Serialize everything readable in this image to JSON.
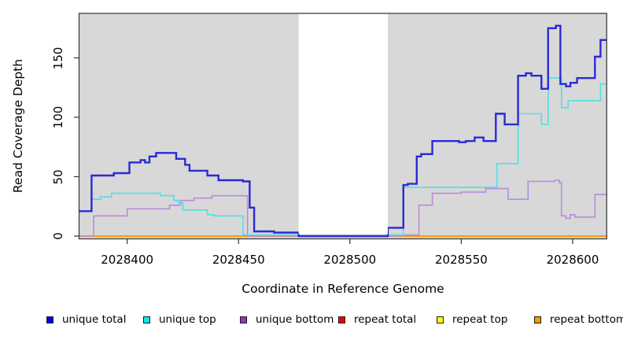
{
  "figure": {
    "y_axis_title": "Read Coverage Depth",
    "x_axis_title": "Coordinate in Reference Genome",
    "x_tick_labels": [
      "2028400",
      "2028450",
      "2028500",
      "2028550",
      "2028600"
    ],
    "y_tick_labels": [
      "0",
      "50",
      "100",
      "150"
    ]
  },
  "legend": {
    "items": [
      {
        "label": "unique total",
        "color": "#0000ee"
      },
      {
        "label": "unique top",
        "color": "#00eeee"
      },
      {
        "label": "unique bottom",
        "color": "#9933cc"
      },
      {
        "label": "repeat total",
        "color": "#ee0000"
      },
      {
        "label": "repeat top",
        "color": "#ffff00"
      },
      {
        "label": "repeat bottom",
        "color": "#ff9900"
      }
    ]
  },
  "chart_data": {
    "type": "line",
    "subtype": "step",
    "title": "",
    "xlabel": "Coordinate in Reference Genome",
    "ylabel": "Read Coverage Depth",
    "xlim": [
      2028378.4,
      2028615.3
    ],
    "ylim": [
      0,
      187
    ],
    "x_ticks": [
      2028400,
      2028450,
      2028500,
      2028550,
      2028600
    ],
    "y_ticks": [
      0,
      50,
      100,
      150
    ],
    "grid": false,
    "legend_position": "bottom",
    "panel_background": "#d8d8d8",
    "masked_region": {
      "x_start": 2028477,
      "x_end": 2028517,
      "color": "#ffffff"
    },
    "series": [
      {
        "name": "repeat total",
        "color": "#e8102c",
        "width": 1.6,
        "points": [
          [
            2028378.4,
            0
          ],
          [
            2028615.3,
            0
          ]
        ]
      },
      {
        "name": "repeat top",
        "color": "#ffff00",
        "width": 1.6,
        "points": [
          [
            2028378.4,
            0
          ],
          [
            2028615.3,
            0
          ]
        ]
      },
      {
        "name": "repeat bottom",
        "color": "#ff9900",
        "width": 2,
        "points": [
          [
            2028378.4,
            0
          ],
          [
            2028615.3,
            0
          ]
        ]
      },
      {
        "name": "unique bottom",
        "color": "#b78cdb",
        "width": 1.6,
        "points": [
          [
            2028378.4,
            0
          ],
          [
            2028385,
            17
          ],
          [
            2028400,
            23
          ],
          [
            2028419,
            26
          ],
          [
            2028424,
            30
          ],
          [
            2028430,
            32
          ],
          [
            2028438,
            34
          ],
          [
            2028454,
            0
          ],
          [
            2028523,
            1
          ],
          [
            2028531,
            26
          ],
          [
            2028537,
            36
          ],
          [
            2028550,
            37
          ],
          [
            2028561,
            40
          ],
          [
            2028571,
            31
          ],
          [
            2028580,
            46
          ],
          [
            2028592,
            47
          ],
          [
            2028594,
            45
          ],
          [
            2028595,
            17
          ],
          [
            2028597,
            15
          ],
          [
            2028599,
            18
          ],
          [
            2028601,
            16
          ],
          [
            2028610,
            35
          ],
          [
            2028615.3,
            35
          ]
        ]
      },
      {
        "name": "unique top",
        "color": "#4fe0e8",
        "width": 1.6,
        "points": [
          [
            2028378.4,
            21
          ],
          [
            2028384,
            31
          ],
          [
            2028388,
            33
          ],
          [
            2028393,
            36
          ],
          [
            2028400,
            36
          ],
          [
            2028415,
            34
          ],
          [
            2028421,
            30
          ],
          [
            2028423,
            28
          ],
          [
            2028425,
            22
          ],
          [
            2028436,
            18
          ],
          [
            2028439,
            17
          ],
          [
            2028452,
            1
          ],
          [
            2028477,
            0
          ],
          [
            2028517,
            1
          ],
          [
            2028524,
            41
          ],
          [
            2028566,
            61
          ],
          [
            2028575.5,
            103
          ],
          [
            2028586,
            94
          ],
          [
            2028589,
            133
          ],
          [
            2028595,
            108
          ],
          [
            2028598,
            114
          ],
          [
            2028612.5,
            128
          ],
          [
            2028615.3,
            128
          ]
        ]
      },
      {
        "name": "unique total",
        "color": "#2a2ad4",
        "width": 2.4,
        "points": [
          [
            2028378.4,
            21
          ],
          [
            2028384,
            51
          ],
          [
            2028394,
            53
          ],
          [
            2028401,
            62
          ],
          [
            2028406,
            64
          ],
          [
            2028408,
            62
          ],
          [
            2028410,
            67
          ],
          [
            2028413,
            70
          ],
          [
            2028422,
            65
          ],
          [
            2028426,
            60
          ],
          [
            2028428,
            55
          ],
          [
            2028436,
            51
          ],
          [
            2028441,
            47
          ],
          [
            2028452,
            46
          ],
          [
            2028455,
            24
          ],
          [
            2028457,
            4
          ],
          [
            2028466,
            3
          ],
          [
            2028477,
            0
          ],
          [
            2028517,
            7
          ],
          [
            2028524,
            43
          ],
          [
            2028526,
            44
          ],
          [
            2028530,
            67
          ],
          [
            2028532,
            69
          ],
          [
            2028537,
            80
          ],
          [
            2028549,
            79
          ],
          [
            2028552,
            80
          ],
          [
            2028556,
            83
          ],
          [
            2028560,
            80
          ],
          [
            2028565.5,
            103
          ],
          [
            2028569.5,
            94
          ],
          [
            2028575.5,
            135
          ],
          [
            2028579,
            137
          ],
          [
            2028581.5,
            135
          ],
          [
            2028586,
            124
          ],
          [
            2028589,
            175
          ],
          [
            2028592.5,
            177
          ],
          [
            2028594.5,
            128
          ],
          [
            2028597,
            126
          ],
          [
            2028599,
            129
          ],
          [
            2028602,
            133
          ],
          [
            2028610,
            151
          ],
          [
            2028612.5,
            165
          ],
          [
            2028615.3,
            165
          ]
        ]
      }
    ]
  }
}
